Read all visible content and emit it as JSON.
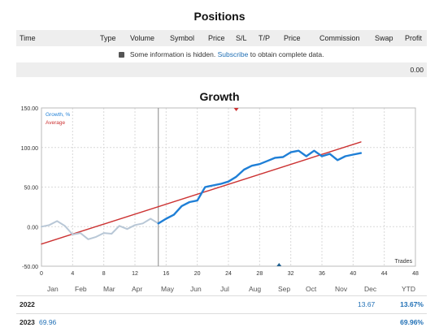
{
  "positions": {
    "title": "Positions",
    "columns": [
      "Time",
      "Type",
      "Volume",
      "Symbol",
      "Price",
      "S/L",
      "T/P",
      "Price",
      "Commission",
      "Swap",
      "Profit"
    ],
    "notice_prefix": "Some information is hidden.",
    "notice_link": "Subscribe",
    "notice_suffix": "to obtain complete data.",
    "total": "0.00"
  },
  "growth": {
    "title": "Growth",
    "months": [
      "Jan",
      "Feb",
      "Mar",
      "Apr",
      "May",
      "Jun",
      "Jul",
      "Aug",
      "Sep",
      "Oct",
      "Nov",
      "Dec",
      "YTD"
    ],
    "rows": [
      {
        "year": "2022",
        "dec": "13.67",
        "ytd": "13.67%"
      },
      {
        "year": "2023",
        "jan": "69.96",
        "ytd": "69.96%"
      }
    ]
  },
  "colors": {
    "growth": "#1f7fd6",
    "growth_early": "#b8c7d6",
    "average": "#cc3333",
    "grid": "#d9d9d9",
    "marker": "#1f5f8f"
  },
  "chart_data": {
    "type": "line",
    "title": "",
    "xlabel": "Trades",
    "ylabel": "",
    "xlim": [
      0,
      48
    ],
    "ylim": [
      -50,
      150
    ],
    "x_ticks": [
      0,
      4,
      8,
      12,
      16,
      20,
      24,
      28,
      32,
      36,
      40,
      44,
      48
    ],
    "y_ticks": [
      -50,
      0,
      50,
      100,
      150
    ],
    "y_tick_labels": [
      "-50.00",
      "0.00",
      "50.00",
      "100.00",
      "150.00"
    ],
    "legend": [
      "Growth, %",
      "Average"
    ],
    "legend_position": "top-left",
    "grid": true,
    "vertical_marker_x": 15,
    "series": [
      {
        "name": "Growth, %",
        "x": [
          0,
          1,
          2,
          3,
          4,
          5,
          6,
          7,
          8,
          9,
          10,
          11,
          12,
          13,
          14,
          15
        ],
        "values": [
          0,
          2,
          7,
          1,
          -10,
          -8,
          -16,
          -13,
          -8,
          -9,
          1,
          -3,
          2,
          4,
          10,
          4
        ]
      },
      {
        "name": "Growth, %",
        "x": [
          15,
          16,
          17,
          18,
          19,
          20,
          21,
          22,
          23,
          24,
          25,
          26,
          27,
          28,
          29,
          30,
          31,
          32,
          33,
          34,
          35,
          36,
          37,
          38,
          39,
          40,
          41
        ],
        "values": [
          4,
          10,
          15,
          26,
          31,
          33,
          50,
          52,
          54,
          57,
          63,
          72,
          77,
          79,
          83,
          87,
          88,
          94,
          96,
          89,
          96,
          89,
          92,
          84,
          89,
          91,
          93
        ]
      },
      {
        "name": "Average",
        "x": [
          0,
          41
        ],
        "values": [
          -22,
          107
        ]
      }
    ]
  }
}
